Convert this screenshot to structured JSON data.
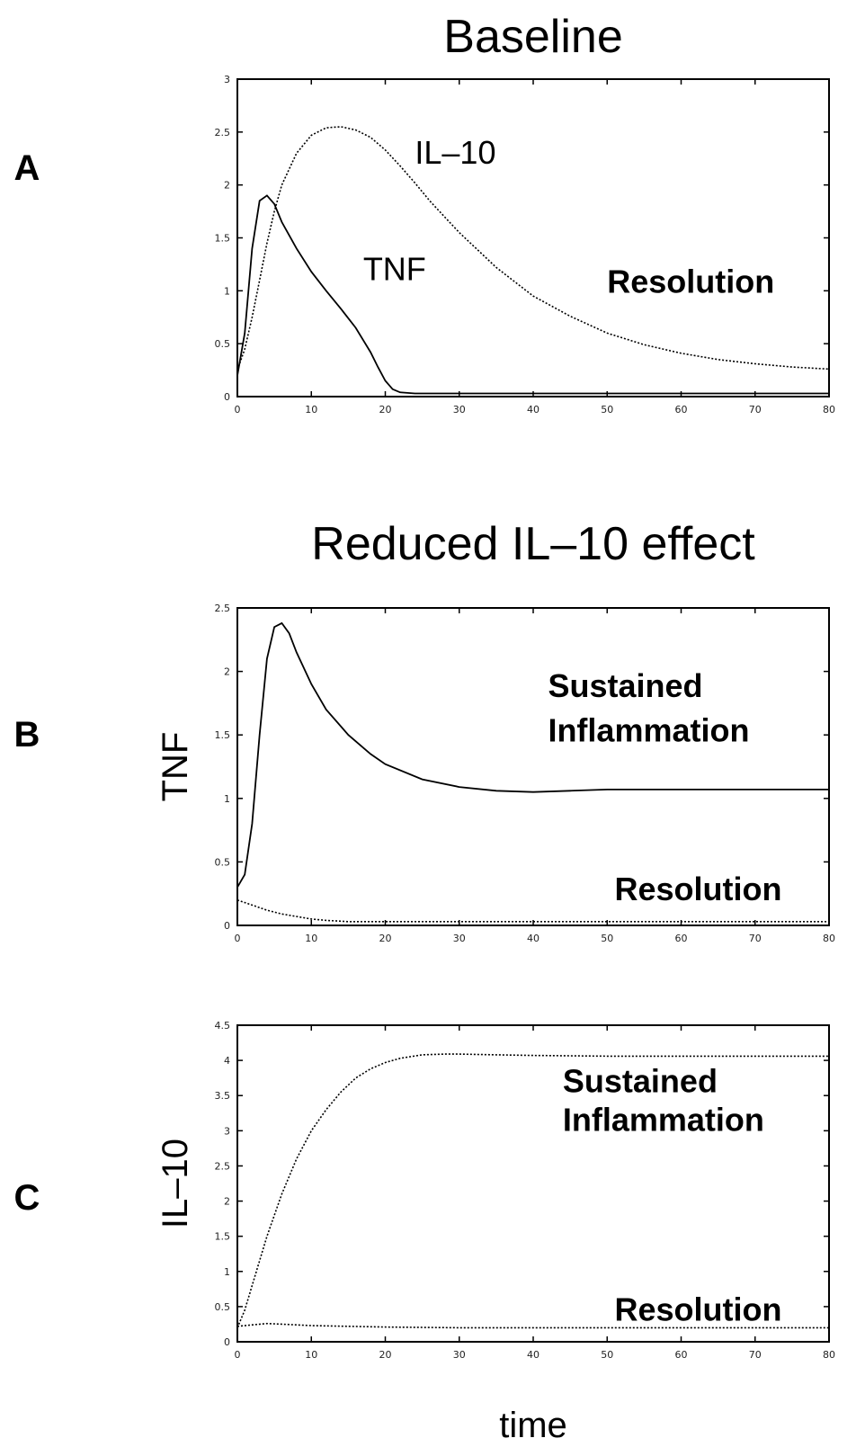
{
  "chart_data": [
    {
      "id": "A",
      "type": "line",
      "panel_label": "A",
      "title": "Baseline",
      "xlabel": "",
      "ylabel": "",
      "xlim": [
        0,
        80
      ],
      "ylim": [
        0,
        3
      ],
      "xticks": [
        "0",
        "10",
        "20",
        "30",
        "40",
        "50",
        "60",
        "70",
        "80"
      ],
      "yticks": [
        "0",
        "0.5",
        "1",
        "1.5",
        "2",
        "2.5",
        "3"
      ],
      "annotations": [
        {
          "text": "IL–10",
          "x": 24,
          "y": 2.2,
          "bold": false
        },
        {
          "text": "TNF",
          "x": 17,
          "y": 1.1,
          "bold": false
        },
        {
          "text": "Resolution",
          "x": 50,
          "y": 0.98,
          "bold": true
        }
      ],
      "series": [
        {
          "x": [
            0,
            1,
            2,
            3,
            4,
            5,
            6,
            8,
            10,
            12,
            14,
            16,
            18,
            20,
            22,
            24,
            26,
            28,
            30,
            35,
            40,
            45,
            50,
            55,
            60,
            65,
            70,
            75,
            80
          ],
          "y": [
            0.25,
            0.45,
            0.75,
            1.1,
            1.45,
            1.75,
            2.0,
            2.3,
            2.47,
            2.54,
            2.55,
            2.52,
            2.45,
            2.33,
            2.18,
            2.02,
            1.85,
            1.7,
            1.55,
            1.22,
            0.95,
            0.76,
            0.6,
            0.49,
            0.41,
            0.35,
            0.31,
            0.28,
            0.26
          ],
          "dotted": true
        },
        {
          "x": [
            0,
            1,
            2,
            3,
            4,
            5,
            6,
            8,
            10,
            12,
            14,
            16,
            18,
            19,
            20,
            21,
            22,
            24,
            30,
            40,
            50,
            60,
            70,
            80
          ],
          "y": [
            0.2,
            0.6,
            1.4,
            1.85,
            1.9,
            1.82,
            1.65,
            1.4,
            1.18,
            1.0,
            0.83,
            0.65,
            0.42,
            0.28,
            0.15,
            0.07,
            0.04,
            0.03,
            0.03,
            0.03,
            0.03,
            0.03,
            0.03,
            0.03
          ],
          "dotted": false
        }
      ]
    },
    {
      "id": "B",
      "type": "line",
      "panel_label": "B",
      "title": "Reduced IL–10 effect",
      "xlabel": "",
      "ylabel": "TNF",
      "xlim": [
        0,
        80
      ],
      "ylim": [
        0,
        2.5
      ],
      "xticks": [
        "0",
        "10",
        "20",
        "30",
        "40",
        "50",
        "60",
        "70",
        "80"
      ],
      "yticks": [
        "0",
        "0.5",
        "1",
        "1.5",
        "2",
        "2.5"
      ],
      "annotations": [
        {
          "text": "Sustained",
          "x": 42,
          "y": 1.8,
          "bold": true
        },
        {
          "text": "Inflammation",
          "x": 42,
          "y": 1.45,
          "bold": true
        },
        {
          "text": "Resolution",
          "x": 51,
          "y": 0.2,
          "bold": true
        }
      ],
      "series": [
        {
          "x": [
            0,
            1,
            2,
            3,
            4,
            5,
            6,
            7,
            8,
            10,
            12,
            15,
            18,
            20,
            25,
            30,
            35,
            40,
            45,
            50,
            60,
            70,
            80
          ],
          "y": [
            0.3,
            0.4,
            0.8,
            1.5,
            2.1,
            2.35,
            2.38,
            2.3,
            2.15,
            1.9,
            1.7,
            1.5,
            1.35,
            1.27,
            1.15,
            1.09,
            1.06,
            1.05,
            1.06,
            1.07,
            1.07,
            1.07,
            1.07
          ],
          "dotted": false
        },
        {
          "x": [
            0,
            2,
            4,
            6,
            8,
            10,
            12,
            15,
            20,
            30,
            40,
            50,
            60,
            70,
            80
          ],
          "y": [
            0.2,
            0.16,
            0.12,
            0.09,
            0.07,
            0.05,
            0.04,
            0.03,
            0.03,
            0.03,
            0.03,
            0.03,
            0.03,
            0.03,
            0.03
          ],
          "dotted": true
        }
      ]
    },
    {
      "id": "C",
      "type": "line",
      "panel_label": "C",
      "title": "",
      "xlabel": "time",
      "ylabel": "IL–10",
      "xlim": [
        0,
        80
      ],
      "ylim": [
        0,
        4.5
      ],
      "xticks": [
        "0",
        "10",
        "20",
        "30",
        "40",
        "50",
        "60",
        "70",
        "80"
      ],
      "yticks": [
        "0",
        "0.5",
        "1",
        "1.5",
        "2",
        "2.5",
        "3",
        "3.5",
        "4",
        "4.5"
      ],
      "annotations": [
        {
          "text": "Sustained",
          "x": 44,
          "y": 3.55,
          "bold": true
        },
        {
          "text": "Inflammation",
          "x": 44,
          "y": 3.0,
          "bold": true
        },
        {
          "text": "Resolution",
          "x": 51,
          "y": 0.3,
          "bold": true
        }
      ],
      "series": [
        {
          "x": [
            0,
            1,
            2,
            4,
            6,
            8,
            10,
            12,
            14,
            16,
            18,
            20,
            22,
            25,
            28,
            30,
            35,
            40,
            50,
            60,
            70,
            80
          ],
          "y": [
            0.2,
            0.45,
            0.8,
            1.5,
            2.1,
            2.6,
            3.0,
            3.3,
            3.55,
            3.75,
            3.88,
            3.97,
            4.03,
            4.08,
            4.09,
            4.09,
            4.08,
            4.07,
            4.06,
            4.06,
            4.06,
            4.06
          ],
          "dotted": true
        },
        {
          "x": [
            0,
            2,
            4,
            6,
            8,
            10,
            15,
            20,
            30,
            40,
            50,
            60,
            70,
            80
          ],
          "y": [
            0.22,
            0.24,
            0.26,
            0.25,
            0.24,
            0.23,
            0.22,
            0.21,
            0.2,
            0.2,
            0.2,
            0.2,
            0.2,
            0.2
          ],
          "dotted": true
        }
      ]
    }
  ]
}
